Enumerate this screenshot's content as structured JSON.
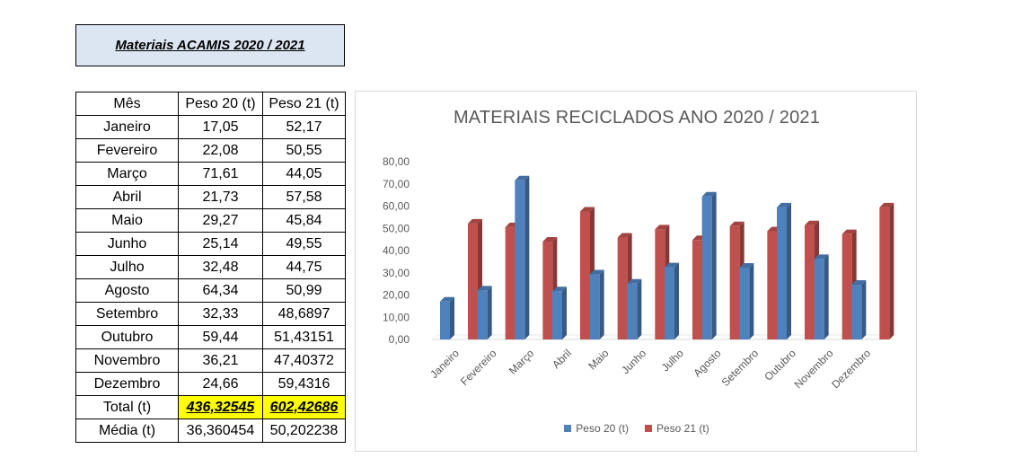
{
  "header": {
    "title": "Materiais ACAMIS 2020 / 2021"
  },
  "table": {
    "headers": [
      "Mês",
      "Peso 20 (t)",
      "Peso 21 (t)"
    ],
    "rows": [
      [
        "Janeiro",
        "17,05",
        "52,17"
      ],
      [
        "Fevereiro",
        "22,08",
        "50,55"
      ],
      [
        "Março",
        "71,61",
        "44,05"
      ],
      [
        "Abril",
        "21,73",
        "57,58"
      ],
      [
        "Maio",
        "29,27",
        "45,84"
      ],
      [
        "Junho",
        "25,14",
        "49,55"
      ],
      [
        "Julho",
        "32,48",
        "44,75"
      ],
      [
        "Agosto",
        "64,34",
        "50,99"
      ],
      [
        "Setembro",
        "32,33",
        "48,6897"
      ],
      [
        "Outubro",
        "59,44",
        "51,43151"
      ],
      [
        "Novembro",
        "36,21",
        "47,40372"
      ],
      [
        "Dezembro",
        "24,66",
        "59,4316"
      ]
    ],
    "total": {
      "label": "Total (t)",
      "v20": "436,32545",
      "v21": "602,42686"
    },
    "media": {
      "label": "Média (t)",
      "v20": "36,360454",
      "v21": "50,202238"
    }
  },
  "chart_data": {
    "type": "bar",
    "title": "MATERIAIS RECICLADOS ANO 2020 / 2021",
    "categories": [
      "Janeiro",
      "Fevereiro",
      "Março",
      "Abril",
      "Maio",
      "Junho",
      "Julho",
      "Agosto",
      "Setembro",
      "Outubro",
      "Novembro",
      "Dezembro"
    ],
    "series": [
      {
        "name": "Peso 20 (t)",
        "color": "#4f81bd",
        "values": [
          17.05,
          22.08,
          71.61,
          21.73,
          29.27,
          25.14,
          32.48,
          64.34,
          32.33,
          59.44,
          36.21,
          24.66
        ]
      },
      {
        "name": "Peso 21 (t)",
        "color": "#c0504d",
        "values": [
          52.17,
          50.55,
          44.05,
          57.58,
          45.84,
          49.55,
          44.75,
          50.99,
          48.6897,
          51.43151,
          47.40372,
          59.4316
        ]
      }
    ],
    "ylim": [
      0,
      80
    ],
    "yticks": [
      "0,00",
      "10,00",
      "20,00",
      "30,00",
      "40,00",
      "50,00",
      "60,00",
      "70,00",
      "80,00"
    ],
    "grid": false,
    "legend": "bottom"
  }
}
